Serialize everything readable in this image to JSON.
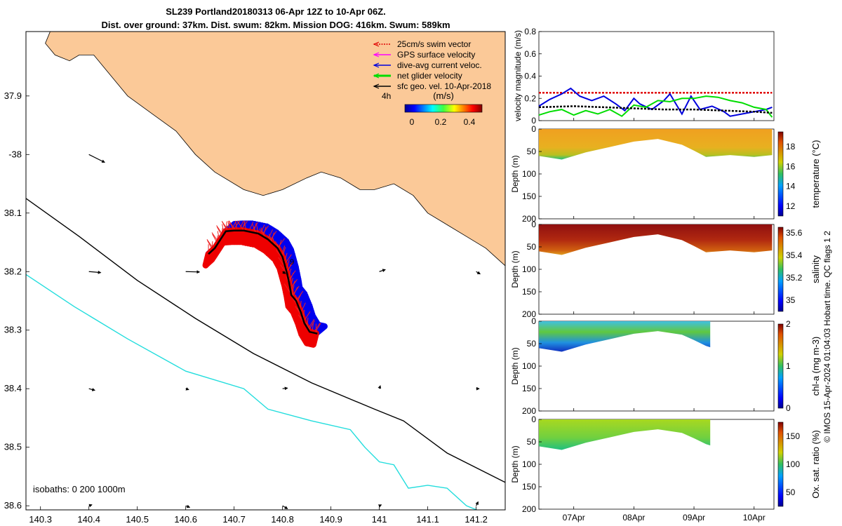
{
  "title": {
    "line1": "SL239 Portland20180313 06-Apr 12Z to 10-Apr 06Z.",
    "line2": "Dist. over ground: 37km. Dist. swum: 82km. Mission DOG: 416km. Swum: 589km"
  },
  "side_note": "© IMOS 15-Apr-2024 01:04:03 Hobart time. QC flags 1  2",
  "chart_data": [
    {
      "type": "map",
      "name": "track-map",
      "xlim": [
        140.27,
        141.26
      ],
      "ylim": [
        -38.607,
        -37.79
      ],
      "x_ticks": [
        140.3,
        140.4,
        140.5,
        140.6,
        140.7,
        140.8,
        140.9,
        141,
        141.1,
        141.2
      ],
      "x_tick_labels": [
        "140.3",
        "140.4",
        "140.5",
        "140.6",
        "140.7",
        "140.8",
        "140.9",
        "141",
        "141.1",
        "141.2"
      ],
      "y_ticks": [
        -37.9,
        -38.0,
        -38.1,
        -38.2,
        -38.3,
        -38.4,
        -38.5,
        -38.6
      ],
      "y_tick_labels": [
        "37.9",
        "-38",
        "38.1",
        "38.2",
        "38.3",
        "38.4",
        "38.5",
        "38.6"
      ],
      "isobath_label": "isobaths: 0   200  1000m",
      "legend": [
        {
          "label": "25cm/s swim vector",
          "color": "#e00000",
          "style": "dotted"
        },
        {
          "label": "GPS surface velocity",
          "color": "#ff00ff",
          "style": "solid"
        },
        {
          "label": "dive-avg current veloc.",
          "color": "#0000dd",
          "style": "solid"
        },
        {
          "label": "net glider velocity",
          "color": "#00dd00",
          "style": "thick"
        },
        {
          "label": "sfc geo. vel. 10-Apr-2018",
          "color": "#000000",
          "style": "solid"
        }
      ],
      "colorbar": {
        "label": "(m/s)",
        "ticks": [
          "0",
          "0.2",
          "0.4"
        ],
        "range": [
          0,
          0.5
        ],
        "side_label": "4h"
      },
      "coastline": [
        [
          140.32,
          -37.79
        ],
        [
          140.31,
          -37.81
        ],
        [
          140.33,
          -37.83
        ],
        [
          140.36,
          -37.84
        ],
        [
          140.38,
          -37.83
        ],
        [
          140.41,
          -37.83
        ],
        [
          140.43,
          -37.85
        ],
        [
          140.48,
          -37.9
        ],
        [
          140.53,
          -37.93
        ],
        [
          140.58,
          -37.96
        ],
        [
          140.62,
          -38.0
        ],
        [
          140.66,
          -38.03
        ],
        [
          140.72,
          -38.06
        ],
        [
          140.76,
          -38.07
        ],
        [
          140.8,
          -38.06
        ],
        [
          140.85,
          -38.04
        ],
        [
          140.88,
          -38.03
        ],
        [
          140.92,
          -38.04
        ],
        [
          140.96,
          -38.06
        ],
        [
          140.99,
          -38.06
        ],
        [
          141.03,
          -38.05
        ],
        [
          141.07,
          -38.07
        ],
        [
          141.1,
          -38.1
        ],
        [
          141.14,
          -38.12
        ],
        [
          141.18,
          -38.14
        ],
        [
          141.22,
          -38.16
        ],
        [
          141.26,
          -38.19
        ]
      ],
      "isobath_200": [
        [
          140.27,
          -38.075
        ],
        [
          140.38,
          -38.14
        ],
        [
          140.5,
          -38.215
        ],
        [
          140.62,
          -38.28
        ],
        [
          140.74,
          -38.34
        ],
        [
          140.86,
          -38.39
        ],
        [
          140.99,
          -38.435
        ],
        [
          141.05,
          -38.455
        ],
        [
          141.14,
          -38.51
        ],
        [
          141.26,
          -38.56
        ]
      ],
      "isobath_1000": [
        [
          140.27,
          -38.205
        ],
        [
          140.37,
          -38.26
        ],
        [
          140.48,
          -38.315
        ],
        [
          140.6,
          -38.37
        ],
        [
          140.72,
          -38.4
        ],
        [
          140.77,
          -38.435
        ],
        [
          140.86,
          -38.455
        ],
        [
          140.94,
          -38.47
        ],
        [
          140.97,
          -38.5
        ],
        [
          141.0,
          -38.525
        ],
        [
          141.03,
          -38.53
        ],
        [
          141.06,
          -38.57
        ],
        [
          141.1,
          -38.565
        ],
        [
          141.14,
          -38.57
        ],
        [
          141.18,
          -38.6
        ],
        [
          141.21,
          -38.61
        ]
      ],
      "track": [
        [
          140.647,
          -38.17
        ],
        [
          140.66,
          -38.16
        ],
        [
          140.672,
          -38.145
        ],
        [
          140.683,
          -38.131
        ],
        [
          140.7,
          -38.13
        ],
        [
          140.72,
          -38.13
        ],
        [
          140.75,
          -38.135
        ],
        [
          140.77,
          -38.145
        ],
        [
          140.79,
          -38.16
        ],
        [
          140.8,
          -38.175
        ],
        [
          140.805,
          -38.19
        ],
        [
          140.81,
          -38.205
        ],
        [
          140.815,
          -38.225
        ],
        [
          140.818,
          -38.24
        ],
        [
          140.828,
          -38.25
        ],
        [
          140.838,
          -38.27
        ],
        [
          140.845,
          -38.288
        ],
        [
          140.856,
          -38.303
        ],
        [
          140.872,
          -38.306
        ]
      ],
      "geo_vectors": [
        {
          "lon": 140.4,
          "lat": -38.0,
          "u": 0.8,
          "v": -0.4
        },
        {
          "lon": 140.4,
          "lat": -38.2,
          "u": 0.6,
          "v": -0.05
        },
        {
          "lon": 140.4,
          "lat": -38.4,
          "u": 0.3,
          "v": -0.08
        },
        {
          "lon": 140.4,
          "lat": -38.6,
          "u": 0.15,
          "v": 0.05
        },
        {
          "lon": 140.6,
          "lat": -38.2,
          "u": 0.7,
          "v": -0.02
        },
        {
          "lon": 140.6,
          "lat": -38.4,
          "u": 0.15,
          "v": -0.05
        },
        {
          "lon": 140.6,
          "lat": -38.6,
          "u": 0.2,
          "v": -0.08
        },
        {
          "lon": 140.8,
          "lat": -38.2,
          "u": 0.15,
          "v": -0.1
        },
        {
          "lon": 140.8,
          "lat": -38.4,
          "u": 0.25,
          "v": 0.03
        },
        {
          "lon": 140.8,
          "lat": -38.6,
          "u": 0.25,
          "v": -0.15
        },
        {
          "lon": 141.0,
          "lat": -38.2,
          "u": 0.3,
          "v": 0.1
        },
        {
          "lon": 141.0,
          "lat": -38.4,
          "u": 0.05,
          "v": 0.15
        },
        {
          "lon": 141.0,
          "lat": -38.6,
          "u": 0.1,
          "v": 0.05
        },
        {
          "lon": 141.2,
          "lat": -38.2,
          "u": 0.2,
          "v": -0.12
        },
        {
          "lon": 141.2,
          "lat": -38.4,
          "u": 0.15,
          "v": 0.0
        },
        {
          "lon": 141.2,
          "lat": -38.6,
          "u": 0.1,
          "v": 0.2
        }
      ],
      "track_label": "9"
    },
    {
      "type": "line",
      "name": "velocity-magnitude",
      "ylabel": "velocity magnitude (m/s)",
      "ylim": [
        0,
        0.8
      ],
      "y_ticks": [
        "0",
        "0.2",
        "0.4",
        "0.6",
        "0.8"
      ],
      "xlim_days": [
        6.42,
        10.33
      ],
      "series": [
        {
          "color": "#e00000",
          "style": "dotted",
          "values_t": [
            6.42,
            10.3
          ],
          "values": [
            0.25,
            0.25
          ]
        },
        {
          "color": "#0000dd",
          "values_t": [
            6.42,
            6.6,
            6.8,
            6.95,
            7.1,
            7.3,
            7.5,
            7.7,
            7.85,
            8.0,
            8.1,
            8.3,
            8.5,
            8.6,
            8.8,
            8.95,
            9.1,
            9.3,
            9.5,
            9.6,
            9.8,
            10.0,
            10.2,
            10.3
          ],
          "values": [
            0.13,
            0.19,
            0.24,
            0.29,
            0.22,
            0.18,
            0.22,
            0.15,
            0.09,
            0.2,
            0.15,
            0.1,
            0.18,
            0.24,
            0.06,
            0.22,
            0.1,
            0.13,
            0.08,
            0.04,
            0.06,
            0.08,
            0.1,
            0.12
          ]
        },
        {
          "color": "#00dd00",
          "values_t": [
            6.42,
            6.6,
            6.8,
            7.0,
            7.2,
            7.4,
            7.6,
            7.8,
            8.0,
            8.2,
            8.4,
            8.6,
            8.8,
            9.0,
            9.2,
            9.4,
            9.6,
            9.8,
            10.0,
            10.2,
            10.3
          ],
          "values": [
            0.05,
            0.08,
            0.1,
            0.05,
            0.09,
            0.06,
            0.1,
            0.04,
            0.14,
            0.12,
            0.18,
            0.17,
            0.2,
            0.2,
            0.22,
            0.21,
            0.18,
            0.16,
            0.12,
            0.1,
            0.03
          ]
        },
        {
          "color": "#000000",
          "style": "dotted",
          "values_t": [
            6.42,
            7.0,
            7.5,
            8.0,
            8.5,
            9.0,
            9.5,
            10.0,
            10.3
          ],
          "values": [
            0.12,
            0.13,
            0.12,
            0.11,
            0.1,
            0.1,
            0.09,
            0.08,
            0.07
          ]
        }
      ]
    },
    {
      "type": "heatmap",
      "name": "temperature-section",
      "ylabel": "Depth (m)",
      "cbar_label": "temperature (°C)",
      "cbar_ticks": [
        "12",
        "14",
        "16",
        "18"
      ],
      "cbar_range": [
        11,
        19.5
      ],
      "ylim": [
        0,
        200
      ],
      "y_ticks": [
        "0",
        "50",
        "100",
        "150",
        "200"
      ],
      "bottom_depth_t": [
        6.42,
        6.8,
        7.2,
        7.6,
        8.0,
        8.4,
        8.8,
        9.0,
        9.2,
        9.6,
        10.0,
        10.3
      ],
      "bottom_depth": [
        60,
        68,
        52,
        40,
        28,
        22,
        35,
        48,
        62,
        58,
        62,
        58
      ],
      "value_hint": "17-18.5"
    },
    {
      "type": "heatmap",
      "name": "salinity-section",
      "ylabel": "Depth (m)",
      "cbar_label": "salinity",
      "cbar_ticks": [
        "35",
        "35.2",
        "35.4",
        "35.6"
      ],
      "cbar_range": [
        34.9,
        35.65
      ],
      "ylim": [
        0,
        200
      ],
      "y_ticks": [
        "0",
        "50",
        "100",
        "150",
        "200"
      ],
      "bottom_depth_t": [
        6.42,
        6.8,
        7.2,
        7.6,
        8.0,
        8.4,
        8.8,
        9.0,
        9.2,
        9.6,
        10.0,
        10.3
      ],
      "bottom_depth": [
        60,
        68,
        52,
        40,
        28,
        22,
        35,
        48,
        62,
        58,
        62,
        58
      ],
      "value_hint": "35.45-35.6"
    },
    {
      "type": "heatmap",
      "name": "chla-section",
      "ylabel": "Depth (m)",
      "cbar_label": "chl-a (mg m-3)",
      "cbar_ticks": [
        "0",
        "1",
        "2"
      ],
      "cbar_range": [
        0,
        2
      ],
      "ylim": [
        0,
        200
      ],
      "y_ticks": [
        "0",
        "50",
        "100",
        "150",
        "200"
      ],
      "bottom_depth_t": [
        6.42,
        6.8,
        7.2,
        7.6,
        8.0,
        8.4,
        8.8,
        9.0,
        9.2,
        9.27
      ],
      "bottom_depth": [
        60,
        68,
        52,
        40,
        28,
        22,
        30,
        42,
        55,
        58
      ],
      "value_hint": "0.5-2"
    },
    {
      "type": "heatmap",
      "name": "oxygen-section",
      "ylabel": "Depth (m)",
      "cbar_label": "Ox. sat. ratio (%)",
      "cbar_ticks": [
        "50",
        "100",
        "150"
      ],
      "cbar_range": [
        25,
        175
      ],
      "ylim": [
        0,
        200
      ],
      "y_ticks": [
        "0",
        "50",
        "100",
        "150",
        "200"
      ],
      "bottom_depth_t": [
        6.42,
        6.8,
        7.2,
        7.6,
        8.0,
        8.4,
        8.8,
        9.0,
        9.2,
        9.27
      ],
      "bottom_depth": [
        60,
        68,
        52,
        40,
        28,
        22,
        30,
        42,
        55,
        58
      ],
      "value_hint": "95-110"
    }
  ],
  "time_axis": {
    "ticks_days": [
      7,
      8,
      9,
      10
    ],
    "labels": [
      "07Apr",
      "08Apr",
      "09Apr",
      "10Apr"
    ]
  }
}
